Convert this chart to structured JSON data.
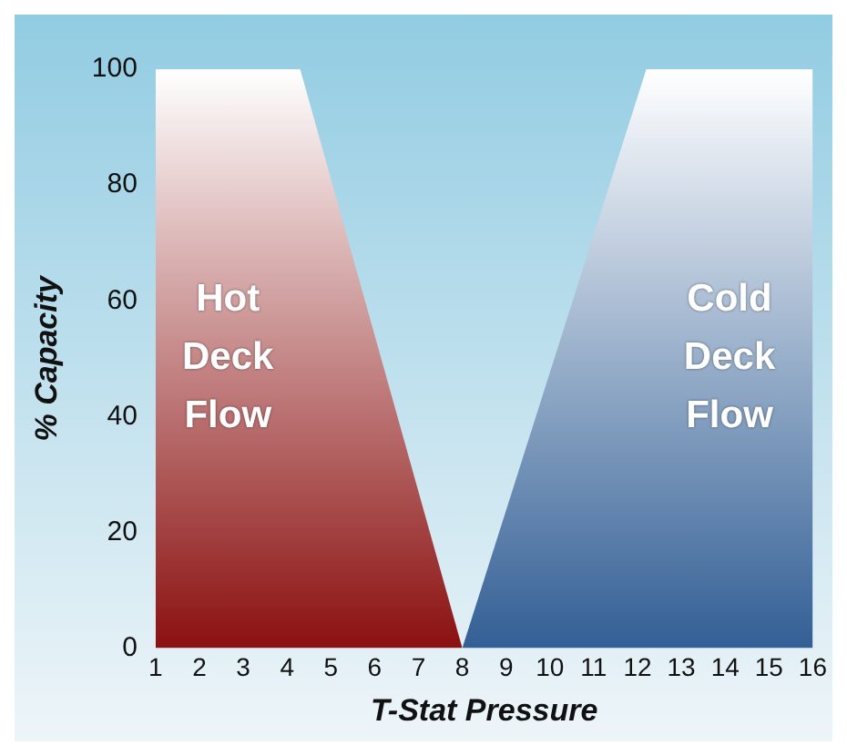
{
  "chart_data": {
    "type": "area",
    "xlabel": "T-Stat Pressure",
    "ylabel": "% Capacity",
    "xlim": [
      1,
      16
    ],
    "xticks": [
      1,
      2,
      3,
      4,
      5,
      6,
      7,
      8,
      9,
      10,
      11,
      12,
      13,
      14,
      15,
      16
    ],
    "ylim": [
      0,
      100
    ],
    "yticks": [
      0,
      20,
      40,
      60,
      80,
      100
    ],
    "series": [
      {
        "name": "Hot Deck Flow",
        "color": "#8b1010",
        "x": [
          1,
          4.3,
          8
        ],
        "values": [
          100,
          100,
          0
        ]
      },
      {
        "name": "Cold Deck Flow",
        "color": "#325f95",
        "x": [
          8,
          12.2,
          16
        ],
        "values": [
          0,
          100,
          100
        ]
      }
    ],
    "grid": false,
    "legend": false
  }
}
